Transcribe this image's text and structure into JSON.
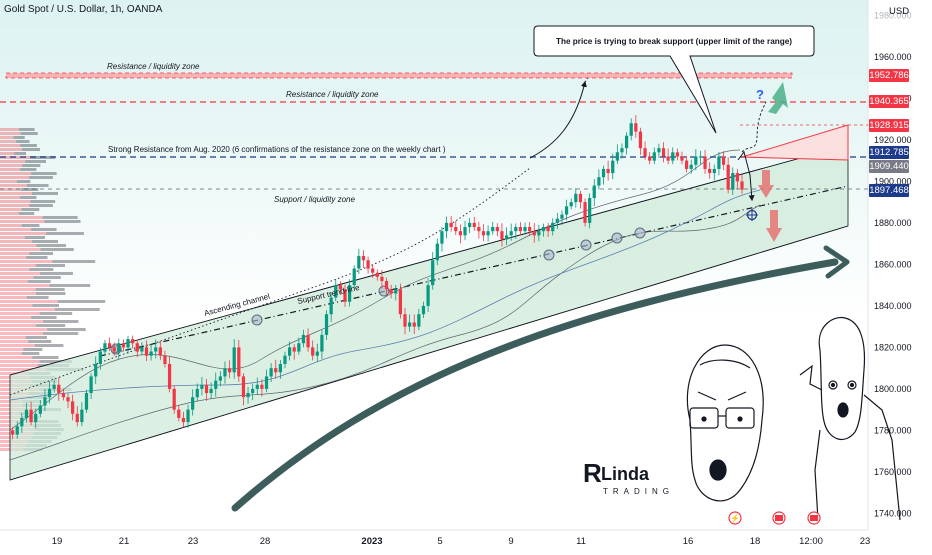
{
  "header": {
    "symbol_label": "Gold Spot / U.S. Dollar, 1h, OANDA",
    "currency": "USD"
  },
  "callout": {
    "text": "The price is trying to break support (upper limit of the range)"
  },
  "annotations": {
    "resistance_zone_1": "Resistance / liquidity zone",
    "resistance_zone_2": "Resistance / liquidity zone",
    "strong_resistance": "Strong Resistance from Aug. 2020 (6 confirmations of the resistance zone on the weekly chart )",
    "support_zone": "Support / liquidity zone",
    "ascending_channel": "Ascending channel",
    "support_trendline": "Support trend-line",
    "question_mark": "?"
  },
  "logo": {
    "text_top": "Linda",
    "text_bottom": "TRADING"
  },
  "price_badges": [
    {
      "value": "1952.786",
      "color": "#f23645"
    },
    {
      "value": "1940.365",
      "color": "#f23645"
    },
    {
      "value": "1928.915",
      "color": "#f23645"
    },
    {
      "value": "1912.785",
      "color": "#1e3a8a"
    },
    {
      "value": "1909.440",
      "color": "#787b86"
    },
    {
      "value": "1897.468",
      "color": "#1e3a8a"
    }
  ],
  "colors": {
    "up_candle": "#089981",
    "down_candle": "#f23645",
    "resistance_line": "#f23645",
    "support_line": "#1e3a8a",
    "channel_fill": "#d7efe0",
    "arrow_green": "#4caf87",
    "arrow_red": "#e57373",
    "big_arrow": "#3d5c5c"
  },
  "chart_data": {
    "type": "candlestick",
    "title": "Gold Spot / U.S. Dollar, 1h, OANDA",
    "ylabel": "USD",
    "ylim": [
      1732,
      1985
    ],
    "y_ticks": [
      "1740.000",
      "1760.000",
      "1780.000",
      "1800.000",
      "1820.000",
      "1840.000",
      "1860.000",
      "1880.000",
      "1900.000",
      "1920.000",
      "1940.000",
      "1960.000",
      "1980.000"
    ],
    "x_ticks": [
      "19",
      "21",
      "23",
      "28",
      "2023",
      "5",
      "9",
      "11",
      "16",
      "18",
      "12:00",
      "23"
    ],
    "horizontal_levels": [
      1952.786,
      1940.365,
      1928.915,
      1912.785,
      1897.468
    ],
    "last_price": 1909.44,
    "series": [
      {
        "values": [
          1780,
          1778,
          1782,
          1786,
          1790,
          1784,
          1788,
          1792,
          1796,
          1800,
          1802,
          1798,
          1796,
          1794,
          1788,
          1784,
          1790,
          1798,
          1806,
          1812,
          1818,
          1822,
          1820,
          1818,
          1822,
          1820,
          1824,
          1822,
          1818,
          1820,
          1816,
          1818,
          1820,
          1816,
          1812,
          1800,
          1790,
          1786,
          1784,
          1790,
          1796,
          1800,
          1802,
          1798,
          1800,
          1804,
          1806,
          1810,
          1808,
          1820,
          1806,
          1796,
          1798,
          1800,
          1802,
          1800,
          1806,
          1810,
          1808,
          1812,
          1816,
          1820,
          1818,
          1822,
          1826,
          1820,
          1816,
          1818,
          1826,
          1836,
          1844,
          1850,
          1848,
          1842,
          1850,
          1858,
          1864,
          1862,
          1858,
          1856,
          1854,
          1852,
          1848,
          1846,
          1848,
          1836,
          1830,
          1832,
          1830,
          1836,
          1840,
          1850,
          1862,
          1870,
          1876,
          1880,
          1878,
          1876,
          1874,
          1878,
          1880,
          1878,
          1876,
          1874,
          1876,
          1878,
          1876,
          1872,
          1874,
          1876,
          1878,
          1876,
          1878,
          1876,
          1874,
          1876,
          1878,
          1876,
          1880,
          1882,
          1884,
          1888,
          1890,
          1894,
          1890,
          1880,
          1892,
          1898,
          1902,
          1906,
          1904,
          1910,
          1914,
          1916,
          1922,
          1928,
          1924,
          1916,
          1912,
          1910,
          1914,
          1916,
          1912,
          1910,
          1914,
          1912,
          1910,
          1906,
          1908,
          1912,
          1912,
          1906,
          1904,
          1906,
          1912,
          1908,
          1896,
          1904,
          1900,
          1896
        ]
      }
    ]
  }
}
